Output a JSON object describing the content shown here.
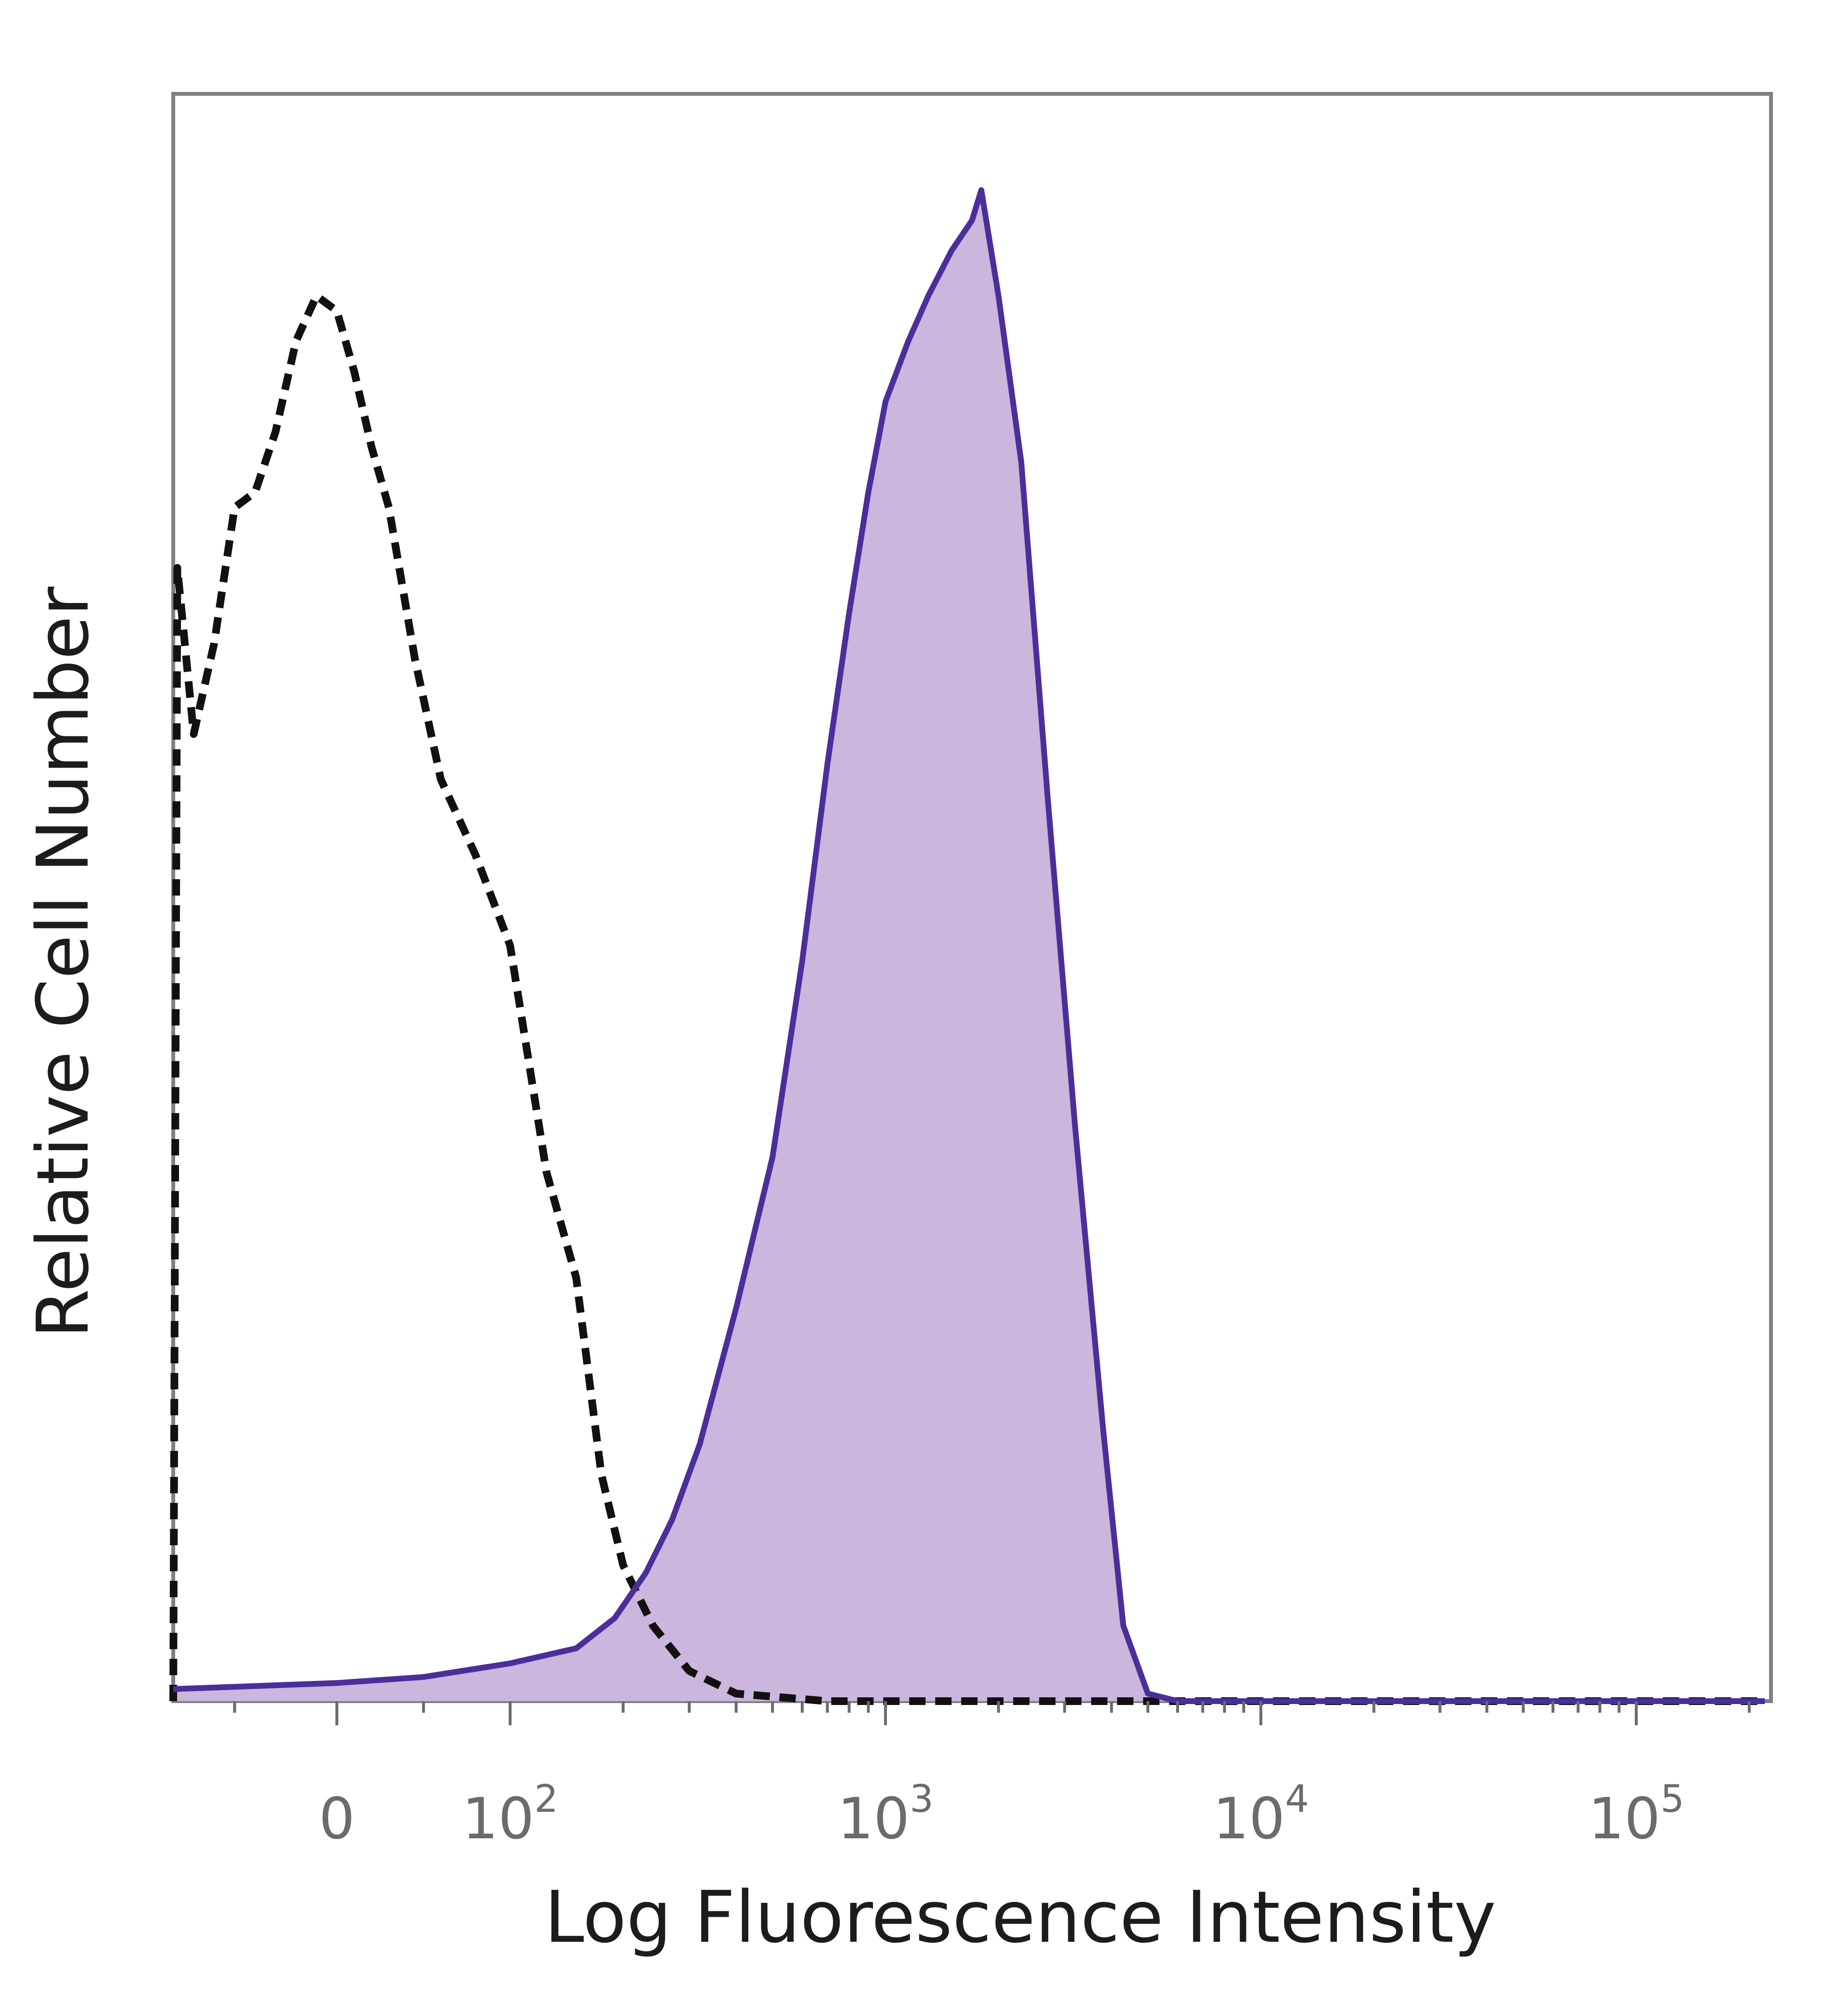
{
  "chart_data": {
    "type": "area",
    "xlabel": "Log Fluorescence Intensity",
    "ylabel": "Relative Cell Number",
    "x_scale": "biexponential",
    "xlim": [
      -80,
      220000
    ],
    "ylim": [
      0,
      1.0
    ],
    "grid": false,
    "x_ticks": [
      {
        "value": 0,
        "base": "0",
        "exp": ""
      },
      {
        "value": 100,
        "base": "10",
        "exp": "2"
      },
      {
        "value": 1000,
        "base": "10",
        "exp": "3"
      },
      {
        "value": 10000,
        "base": "10",
        "exp": "4"
      },
      {
        "value": 100000,
        "base": "10",
        "exp": "5"
      }
    ],
    "series": [
      {
        "style": "dashed",
        "color": "#111111",
        "fill": "none",
        "points": [
          [
            -80,
            0.0
          ],
          [
            -78,
            0.75
          ],
          [
            -70,
            0.64
          ],
          [
            -60,
            0.7
          ],
          [
            -50,
            0.79
          ],
          [
            -40,
            0.8
          ],
          [
            -30,
            0.84
          ],
          [
            -20,
            0.9
          ],
          [
            -10,
            0.93
          ],
          [
            0,
            0.92
          ],
          [
            10,
            0.88
          ],
          [
            20,
            0.83
          ],
          [
            30,
            0.79
          ],
          [
            45,
            0.69
          ],
          [
            60,
            0.61
          ],
          [
            80,
            0.56
          ],
          [
            100,
            0.5
          ],
          [
            125,
            0.35
          ],
          [
            150,
            0.28
          ],
          [
            175,
            0.15
          ],
          [
            200,
            0.09
          ],
          [
            240,
            0.05
          ],
          [
            300,
            0.02
          ],
          [
            400,
            0.005
          ],
          [
            700,
            0.0
          ],
          [
            220000,
            0.0
          ]
        ]
      },
      {
        "style": "solid",
        "color": "#4b2e9a",
        "fill": "#cbb6dd",
        "points": [
          [
            -80,
            0.008
          ],
          [
            -40,
            0.01
          ],
          [
            0,
            0.012
          ],
          [
            50,
            0.016
          ],
          [
            100,
            0.025
          ],
          [
            150,
            0.035
          ],
          [
            190,
            0.055
          ],
          [
            230,
            0.085
          ],
          [
            270,
            0.12
          ],
          [
            320,
            0.17
          ],
          [
            400,
            0.26
          ],
          [
            500,
            0.36
          ],
          [
            600,
            0.49
          ],
          [
            700,
            0.62
          ],
          [
            800,
            0.72
          ],
          [
            900,
            0.8
          ],
          [
            1000,
            0.86
          ],
          [
            1150,
            0.9
          ],
          [
            1300,
            0.93
          ],
          [
            1500,
            0.96
          ],
          [
            1700,
            0.98
          ],
          [
            1800,
            1.0
          ],
          [
            2000,
            0.93
          ],
          [
            2300,
            0.82
          ],
          [
            2700,
            0.6
          ],
          [
            3200,
            0.38
          ],
          [
            3800,
            0.18
          ],
          [
            4300,
            0.05
          ],
          [
            5000,
            0.005
          ],
          [
            6000,
            0.0
          ],
          [
            220000,
            0.0
          ]
        ]
      }
    ]
  }
}
